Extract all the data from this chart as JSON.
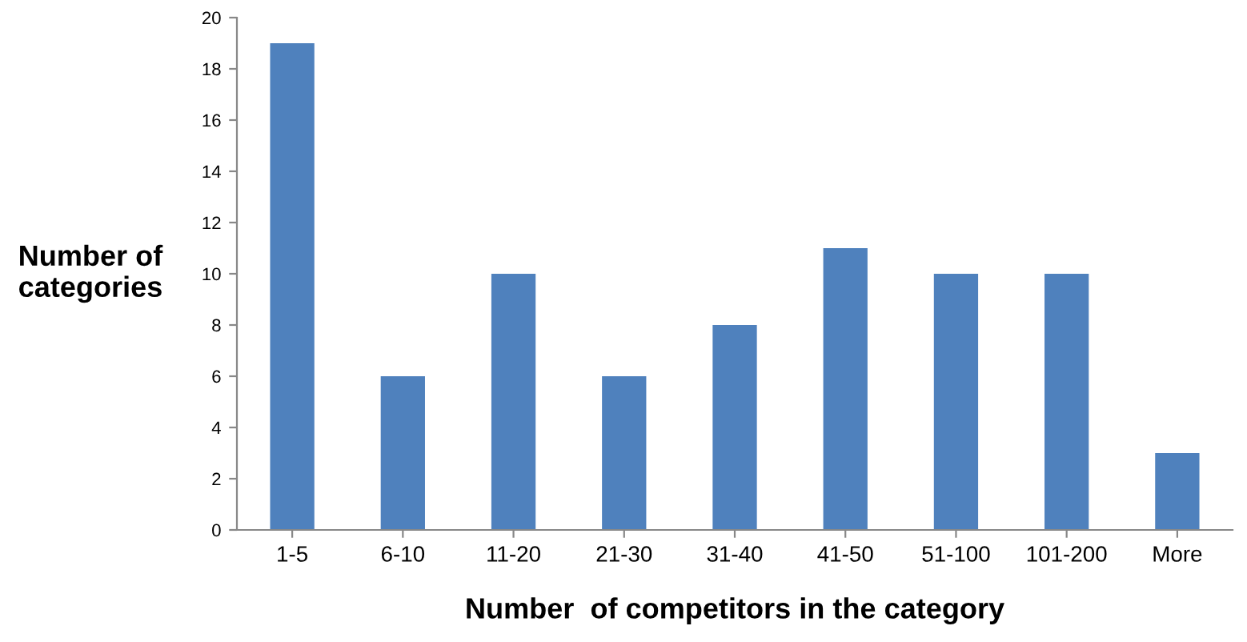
{
  "chart_data": {
    "type": "bar",
    "xlabel": "Number  of competitors in the category",
    "ylabel": "Number of\ncategories",
    "categories": [
      "1-5",
      "6-10",
      "11-20",
      "21-30",
      "31-40",
      "41-50",
      "51-100",
      "101-200",
      "More"
    ],
    "values": [
      19,
      6,
      10,
      6,
      8,
      11,
      10,
      10,
      3
    ],
    "color": "#4f81bd",
    "ylim": [
      0,
      20
    ],
    "yticks": [
      0,
      2,
      4,
      6,
      8,
      10,
      12,
      14,
      16,
      18,
      20
    ],
    "grid": false,
    "legend": false
  }
}
